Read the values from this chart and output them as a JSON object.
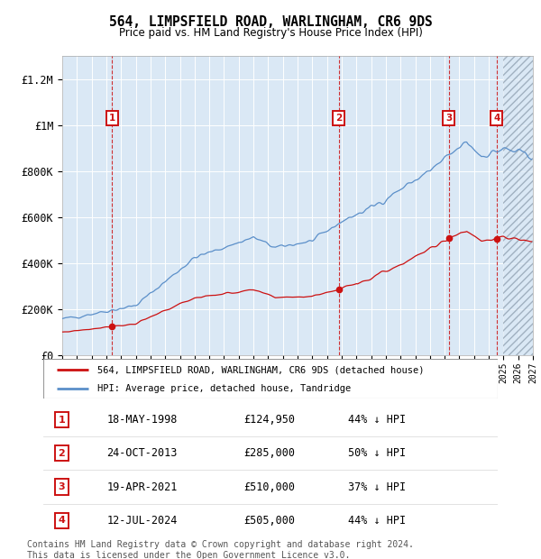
{
  "title": "564, LIMPSFIELD ROAD, WARLINGHAM, CR6 9DS",
  "subtitle": "Price paid vs. HM Land Registry's House Price Index (HPI)",
  "legend_line1": "564, LIMPSFIELD ROAD, WARLINGHAM, CR6 9DS (detached house)",
  "legend_line2": "HPI: Average price, detached house, Tandridge",
  "footer1": "Contains HM Land Registry data © Crown copyright and database right 2024.",
  "footer2": "This data is licensed under the Open Government Licence v3.0.",
  "transactions": [
    {
      "num": 1,
      "date": "18-MAY-1998",
      "price": 124950,
      "pct": "44% ↓ HPI",
      "year": 1998.38
    },
    {
      "num": 2,
      "date": "24-OCT-2013",
      "price": 285000,
      "pct": "50% ↓ HPI",
      "year": 2013.81
    },
    {
      "num": 3,
      "date": "19-APR-2021",
      "price": 510000,
      "pct": "37% ↓ HPI",
      "year": 2021.29
    },
    {
      "num": 4,
      "date": "12-JUL-2024",
      "price": 505000,
      "pct": "44% ↓ HPI",
      "year": 2024.53
    }
  ],
  "hpi_color": "#5b8fc9",
  "price_color": "#cc1111",
  "background_color": "#dae8f5",
  "ylim": [
    0,
    1300000
  ],
  "xlim_start": 1995,
  "xlim_end": 2027,
  "yticks": [
    0,
    200000,
    400000,
    600000,
    800000,
    1000000,
    1200000
  ],
  "ytick_labels": [
    "£0",
    "£200K",
    "£400K",
    "£600K",
    "£800K",
    "£1M",
    "£1.2M"
  ],
  "hpi_future_start": 2025.0
}
